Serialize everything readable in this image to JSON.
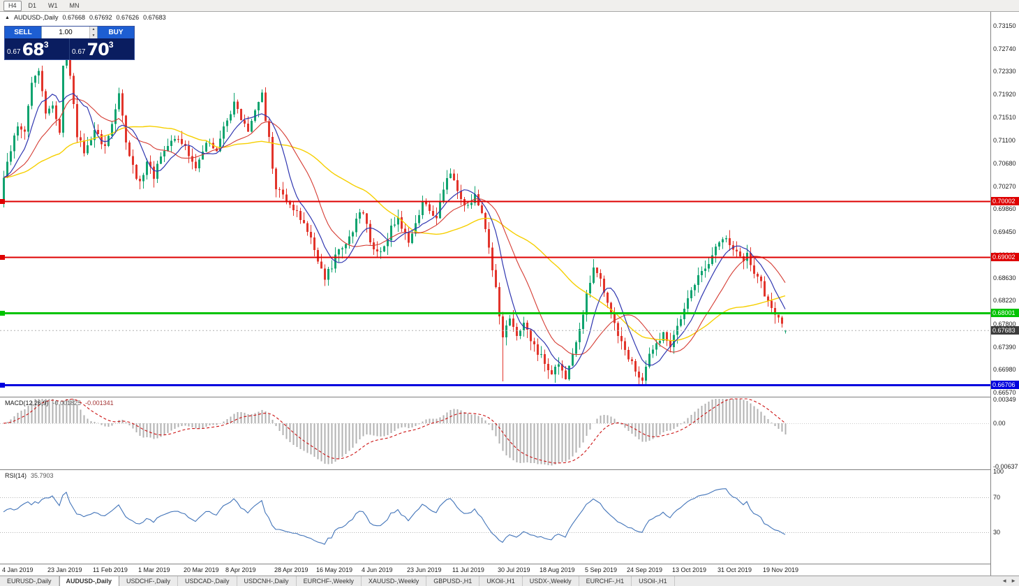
{
  "toolbar": {
    "timeframes": [
      {
        "label": "H4",
        "active": true
      },
      {
        "label": "D1",
        "active": false
      },
      {
        "label": "W1",
        "active": false
      },
      {
        "label": "MN",
        "active": false
      }
    ]
  },
  "chart": {
    "symbol_line": {
      "marker": "▲",
      "symbol": "AUDUSD-,Daily",
      "open": "0.67668",
      "high": "0.67692",
      "low": "0.67626",
      "close": "0.67683"
    },
    "trade_panel": {
      "sell_label": "SELL",
      "buy_label": "BUY",
      "lot": "1.00",
      "lot_up_icon": "▲",
      "lot_down_icon": "▼",
      "bid": {
        "prefix": "0.67",
        "big": "68",
        "sup": "3"
      },
      "ask": {
        "prefix": "0.67",
        "big": "70",
        "sup": "3"
      }
    }
  },
  "indicators": {
    "macd": {
      "title": "MACD(12,26,9)",
      "main_value": "-0.001825",
      "signal_value": "-0.001341",
      "scale": [
        "0.00349",
        "0.00",
        "-0.00637"
      ]
    },
    "rsi": {
      "title": "RSI(14)",
      "value": "35.7903",
      "scale": [
        "100",
        "70",
        "30"
      ]
    }
  },
  "price_scale": {
    "ticks": [
      "0.73150",
      "0.72740",
      "0.72330",
      "0.71920",
      "0.71510",
      "0.71100",
      "0.70680",
      "0.70270",
      "0.69860",
      "0.69450",
      "0.69040",
      "0.68630",
      "0.68220",
      "0.67800",
      "0.67390",
      "0.66980",
      "0.66570"
    ],
    "current": {
      "value": "0.67683",
      "color": "#3c3c3c"
    }
  },
  "dates": [
    {
      "label": "4 Jan 2019",
      "i": 0
    },
    {
      "label": "23 Jan 2019",
      "i": 13
    },
    {
      "label": "11 Feb 2019",
      "i": 26
    },
    {
      "label": "1 Mar 2019",
      "i": 39
    },
    {
      "label": "20 Mar 2019",
      "i": 52
    },
    {
      "label": "8 Apr 2019",
      "i": 64
    },
    {
      "label": "28 Apr 2019",
      "i": 78
    },
    {
      "label": "16 May 2019",
      "i": 90
    },
    {
      "label": "4 Jun 2019",
      "i": 103
    },
    {
      "label": "23 Jun 2019",
      "i": 116
    },
    {
      "label": "11 Jul 2019",
      "i": 129
    },
    {
      "label": "30 Jul 2019",
      "i": 142
    },
    {
      "label": "18 Aug 2019",
      "i": 154
    },
    {
      "label": "5 Sep 2019",
      "i": 167
    },
    {
      "label": "24 Sep 2019",
      "i": 179
    },
    {
      "label": "13 Oct 2019",
      "i": 192
    },
    {
      "label": "31 Oct 2019",
      "i": 205
    },
    {
      "label": "19 Nov 2019",
      "i": 218
    }
  ],
  "tabs": {
    "scroll_left": "◄",
    "scroll_right": "►",
    "items": [
      {
        "label": "EURUSD-,Daily",
        "active": false
      },
      {
        "label": "AUDUSD-,Daily",
        "active": true
      },
      {
        "label": "USDCHF-,Daily",
        "active": false
      },
      {
        "label": "USDCAD-,Daily",
        "active": false
      },
      {
        "label": "USDCNH-,Daily",
        "active": false
      },
      {
        "label": "EURCHF-,Weekly",
        "active": false
      },
      {
        "label": "XAUUSD-,Weekly",
        "active": false
      },
      {
        "label": "GBPUSD-,H1",
        "active": false
      },
      {
        "label": "UKOil-,H1",
        "active": false
      },
      {
        "label": "USDX-,Weekly",
        "active": false
      },
      {
        "label": "EURCHF-,H1",
        "active": false
      },
      {
        "label": "USOil-,H1",
        "active": false
      }
    ]
  },
  "colors": {
    "candle_up": "#0fa36f",
    "candle_down": "#e2342b",
    "macd_hist": "#b2b2b2",
    "macd_signal": "#cc1111",
    "rsi_line": "#4274b9",
    "separator": "#7f7f7f",
    "current_line": "#b0b0b0",
    "dotted_level": "#b4b4b4"
  },
  "chart_data": {
    "type": "candlestick",
    "symbol": "AUDUSD",
    "timeframe": "Daily",
    "candle_count": 225,
    "visible_range": {
      "start": "4 Jan 2019",
      "end": "26 Nov 2019"
    },
    "price_axis": {
      "min": 0.6657,
      "max": 0.7315,
      "tick_step": 0.0041
    },
    "ohlc_current": {
      "open": 0.67668,
      "high": 0.67692,
      "low": 0.67626,
      "close": 0.67683
    },
    "bid": 0.67683,
    "ask": 0.67703,
    "levels": [
      {
        "price": 0.70002,
        "color": "#de0000",
        "width": 2
      },
      {
        "price": 0.69002,
        "color": "#de0000",
        "width": 2
      },
      {
        "price": 0.68001,
        "color": "#00c300",
        "width": 3
      },
      {
        "price": 0.66706,
        "color": "#0000de",
        "width": 3
      }
    ],
    "moving_averages": [
      {
        "period": 42,
        "color": "#f6cf00",
        "width": 1.4
      },
      {
        "period": 17,
        "color": "#d53b32",
        "width": 1.1
      },
      {
        "period": 8,
        "color": "#2f36b0",
        "width": 1.2
      }
    ],
    "macd": {
      "fast": 12,
      "slow": 26,
      "signal": 9,
      "main": -0.001825,
      "signal_value": -0.001341,
      "range": [
        -0.00637,
        0.00349
      ]
    },
    "rsi": {
      "period": 14,
      "value": 35.7903,
      "levels": [
        70,
        30
      ]
    },
    "close_path_anchors": [
      [
        0,
        0.704
      ],
      [
        2,
        0.709
      ],
      [
        4,
        0.714
      ],
      [
        6,
        0.712
      ],
      [
        8,
        0.721
      ],
      [
        10,
        0.723
      ],
      [
        12,
        0.716
      ],
      [
        14,
        0.7175
      ],
      [
        16,
        0.712
      ],
      [
        17,
        0.725
      ],
      [
        18,
        0.729
      ],
      [
        19,
        0.723
      ],
      [
        21,
        0.712
      ],
      [
        23,
        0.709
      ],
      [
        26,
        0.7125
      ],
      [
        29,
        0.71
      ],
      [
        31,
        0.714
      ],
      [
        33,
        0.7195
      ],
      [
        35,
        0.711
      ],
      [
        37,
        0.706
      ],
      [
        39,
        0.703
      ],
      [
        41,
        0.7075
      ],
      [
        43,
        0.7045
      ],
      [
        46,
        0.7095
      ],
      [
        49,
        0.7115
      ],
      [
        52,
        0.7095
      ],
      [
        55,
        0.706
      ],
      [
        58,
        0.711
      ],
      [
        61,
        0.7095
      ],
      [
        64,
        0.715
      ],
      [
        66,
        0.7175
      ],
      [
        68,
        0.7145
      ],
      [
        70,
        0.7125
      ],
      [
        72,
        0.7165
      ],
      [
        74,
        0.719
      ],
      [
        76,
        0.711
      ],
      [
        78,
        0.702
      ],
      [
        80,
        0.701
      ],
      [
        82,
        0.6995
      ],
      [
        84,
        0.6985
      ],
      [
        86,
        0.6955
      ],
      [
        88,
        0.694
      ],
      [
        90,
        0.689
      ],
      [
        92,
        0.6865
      ],
      [
        94,
        0.6885
      ],
      [
        96,
        0.6915
      ],
      [
        98,
        0.6925
      ],
      [
        100,
        0.695
      ],
      [
        102,
        0.6975
      ],
      [
        103,
        0.698
      ],
      [
        105,
        0.693
      ],
      [
        107,
        0.6905
      ],
      [
        109,
        0.692
      ],
      [
        111,
        0.695
      ],
      [
        113,
        0.6965
      ],
      [
        115,
        0.6945
      ],
      [
        116,
        0.692
      ],
      [
        118,
        0.6965
      ],
      [
        120,
        0.6995
      ],
      [
        122,
        0.6985
      ],
      [
        124,
        0.6975
      ],
      [
        126,
        0.702
      ],
      [
        128,
        0.7055
      ],
      [
        129,
        0.704
      ],
      [
        131,
        0.7005
      ],
      [
        133,
        0.699
      ],
      [
        135,
        0.7015
      ],
      [
        137,
        0.6975
      ],
      [
        139,
        0.692
      ],
      [
        141,
        0.684
      ],
      [
        142,
        0.679
      ],
      [
        143,
        0.6758
      ],
      [
        145,
        0.6788
      ],
      [
        147,
        0.6762
      ],
      [
        149,
        0.6778
      ],
      [
        151,
        0.675
      ],
      [
        153,
        0.6728
      ],
      [
        155,
        0.6714
      ],
      [
        157,
        0.6692
      ],
      [
        159,
        0.671
      ],
      [
        161,
        0.6686
      ],
      [
        163,
        0.673
      ],
      [
        165,
        0.6775
      ],
      [
        167,
        0.683
      ],
      [
        169,
        0.6885
      ],
      [
        171,
        0.686
      ],
      [
        173,
        0.6815
      ],
      [
        175,
        0.678
      ],
      [
        177,
        0.6748
      ],
      [
        179,
        0.672
      ],
      [
        181,
        0.67
      ],
      [
        183,
        0.6676
      ],
      [
        185,
        0.6722
      ],
      [
        187,
        0.6748
      ],
      [
        189,
        0.6762
      ],
      [
        191,
        0.6742
      ],
      [
        193,
        0.6776
      ],
      [
        195,
        0.6812
      ],
      [
        197,
        0.684
      ],
      [
        199,
        0.6862
      ],
      [
        201,
        0.6882
      ],
      [
        203,
        0.6906
      ],
      [
        205,
        0.6926
      ],
      [
        207,
        0.6932
      ],
      [
        209,
        0.6916
      ],
      [
        211,
        0.6896
      ],
      [
        213,
        0.6902
      ],
      [
        215,
        0.6872
      ],
      [
        217,
        0.6852
      ],
      [
        218,
        0.6832
      ],
      [
        220,
        0.6802
      ],
      [
        222,
        0.6786
      ],
      [
        224,
        0.67683
      ]
    ],
    "special_wicks": [
      {
        "i": 18,
        "high": 0.7295
      },
      {
        "i": 143,
        "low": 0.6677
      },
      {
        "i": 183,
        "low": 0.667
      }
    ]
  }
}
